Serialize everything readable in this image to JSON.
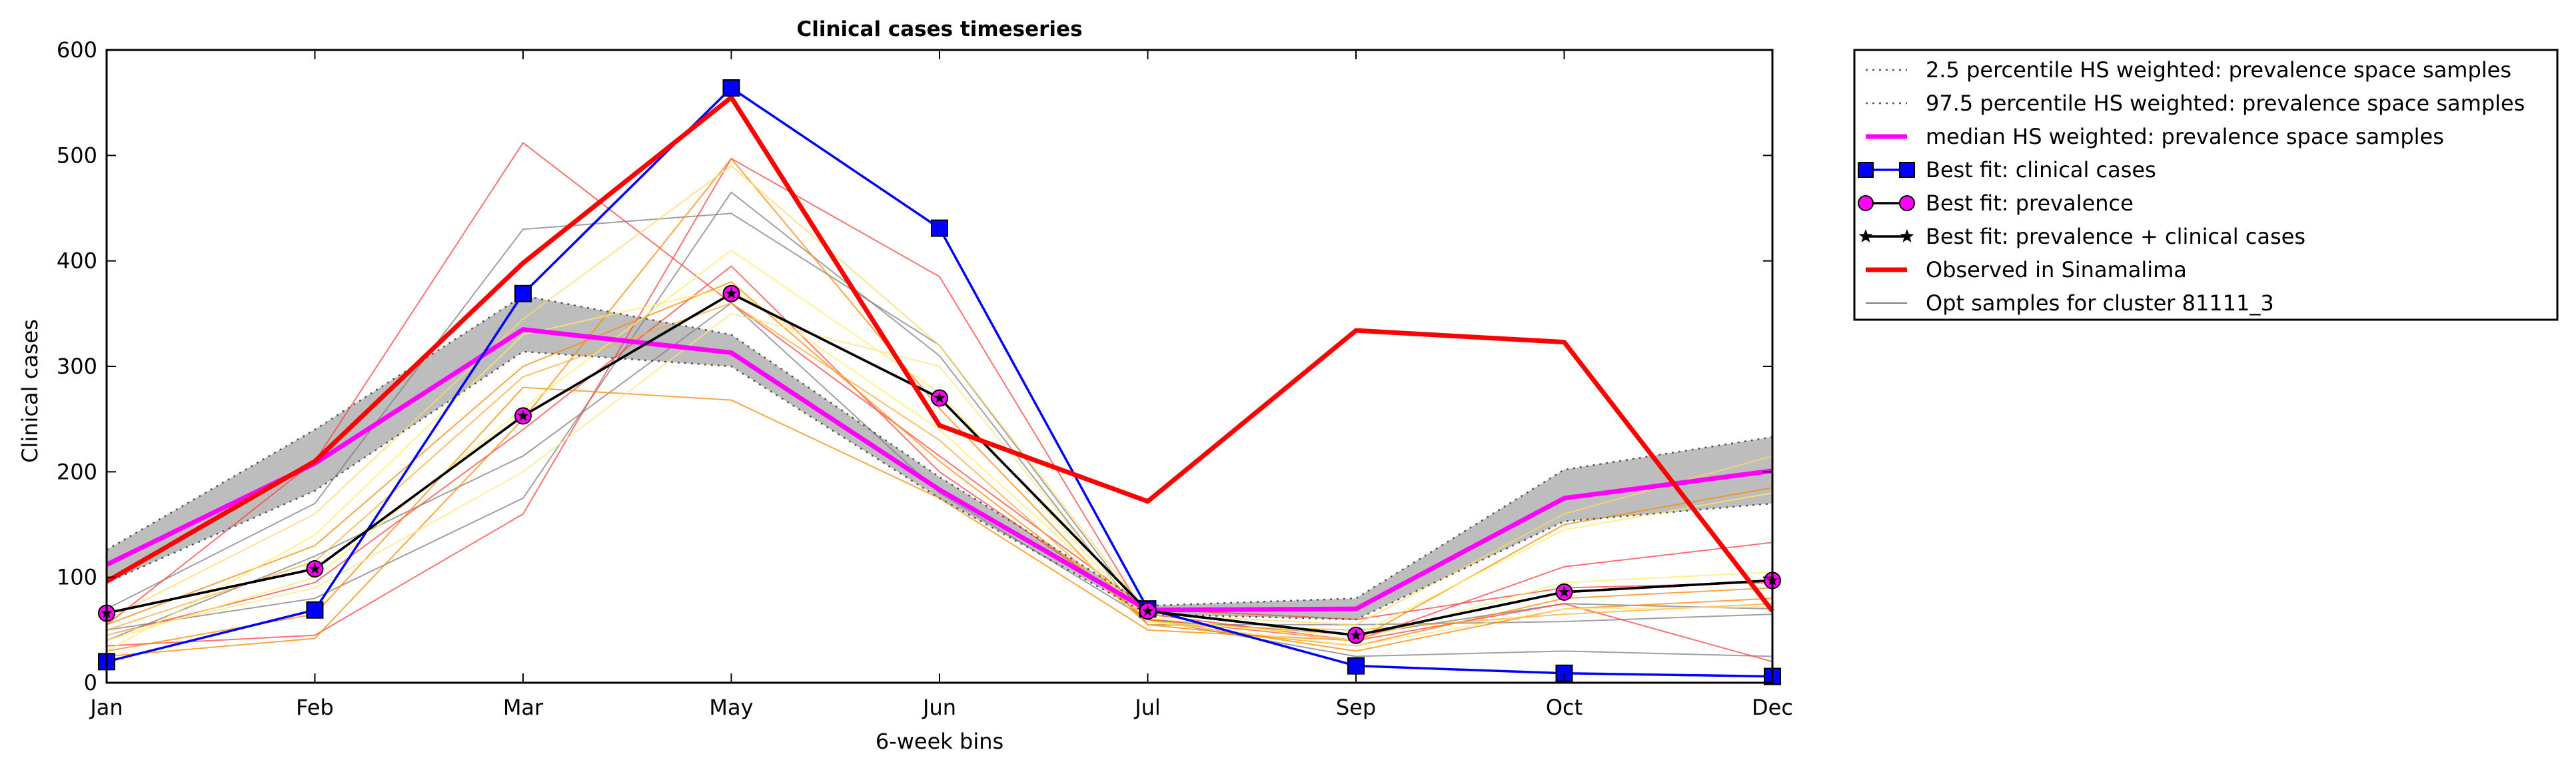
{
  "chart_data": {
    "type": "line",
    "title": "Clinical cases timeseries",
    "xlabel": "6-week bins",
    "ylabel": "Clinical cases",
    "categories": [
      "Jan",
      "Feb",
      "Mar",
      "May",
      "Jun",
      "Jul",
      "Sep",
      "Oct",
      "Dec"
    ],
    "ylim": [
      0,
      600
    ],
    "yticks": [
      0,
      100,
      200,
      300,
      400,
      500,
      600
    ],
    "grid": false,
    "legend_position": "outside-top-right",
    "series": [
      {
        "name": "2.5 percentile HS weighted: prevalence space samples",
        "style": "dotted",
        "color": "#555555",
        "values": [
          95,
          182,
          314,
          300,
          175,
          65,
          60,
          153,
          170
        ]
      },
      {
        "name": "97.5 percentile HS weighted: prevalence space samples",
        "style": "dotted",
        "color": "#555555",
        "values": [
          126,
          240,
          367,
          330,
          195,
          73,
          80,
          202,
          233
        ]
      },
      {
        "name": "median HS weighted: prevalence space samples",
        "style": "solid",
        "color": "#ff00ff",
        "values": [
          112,
          208,
          335,
          313,
          183,
          69,
          70,
          175,
          201
        ]
      },
      {
        "name": "Best fit: clinical cases",
        "style": "square-markers",
        "color": "#0000ff",
        "values": [
          20,
          69,
          369,
          564,
          431,
          70,
          16,
          9,
          6
        ]
      },
      {
        "name": "Best fit: prevalence",
        "style": "circle-markers",
        "color": "#ff00ff",
        "values": [
          66,
          108,
          253,
          369,
          270,
          68,
          45,
          86,
          97
        ]
      },
      {
        "name": "Best fit: prevalence + clinical cases",
        "style": "star-markers",
        "color": "#000000",
        "values": [
          66,
          108,
          253,
          369,
          270,
          68,
          45,
          86,
          97
        ]
      },
      {
        "name": "Observed in Sinamalima",
        "style": "solid-thick",
        "color": "#ff0000",
        "values": [
          96,
          210,
          398,
          555,
          244,
          172,
          334,
          323,
          68
        ]
      },
      {
        "name": "Opt samples for cluster 81111_3",
        "style": "thin",
        "color": "#808080",
        "values": [
          70,
          170,
          430,
          445,
          320,
          60,
          25,
          30,
          25
        ]
      }
    ],
    "sample_traces": [
      {
        "color": "#808080",
        "values": [
          70,
          170,
          430,
          445,
          320,
          60,
          25,
          30,
          25
        ]
      },
      {
        "color": "#808080",
        "values": [
          50,
          80,
          175,
          465,
          310,
          55,
          55,
          58,
          65
        ]
      },
      {
        "color": "#808080",
        "values": [
          40,
          120,
          215,
          360,
          180,
          60,
          45,
          75,
          70
        ]
      },
      {
        "color": "#ff4444",
        "values": [
          35,
          45,
          160,
          497,
          385,
          60,
          40,
          110,
          133
        ]
      },
      {
        "color": "#ff4444",
        "values": [
          55,
          210,
          512,
          360,
          215,
          70,
          60,
          90,
          95
        ]
      },
      {
        "color": "#ff4444",
        "values": [
          45,
          95,
          240,
          395,
          200,
          65,
          40,
          75,
          20
        ]
      },
      {
        "color": "#ff8800",
        "values": [
          25,
          42,
          250,
          497,
          260,
          55,
          35,
          80,
          90
        ]
      },
      {
        "color": "#ff8800",
        "values": [
          30,
          65,
          280,
          268,
          175,
          50,
          40,
          150,
          185
        ]
      },
      {
        "color": "#ff8800",
        "values": [
          55,
          130,
          300,
          380,
          210,
          60,
          30,
          70,
          80
        ]
      },
      {
        "color": "#ffaa33",
        "values": [
          50,
          115,
          290,
          360,
          230,
          55,
          50,
          65,
          75
        ]
      },
      {
        "color": "#ffd966",
        "values": [
          60,
          160,
          345,
          490,
          320,
          65,
          55,
          160,
          215
        ]
      },
      {
        "color": "#ffee66",
        "values": [
          40,
          100,
          260,
          410,
          275,
          58,
          45,
          145,
          180
        ]
      },
      {
        "color": "#ffee66",
        "values": [
          30,
          140,
          330,
          375,
          240,
          62,
          40,
          95,
          105
        ]
      },
      {
        "color": "#ffe680",
        "values": [
          45,
          90,
          200,
          350,
          300,
          58,
          35,
          70,
          72
        ]
      }
    ]
  }
}
